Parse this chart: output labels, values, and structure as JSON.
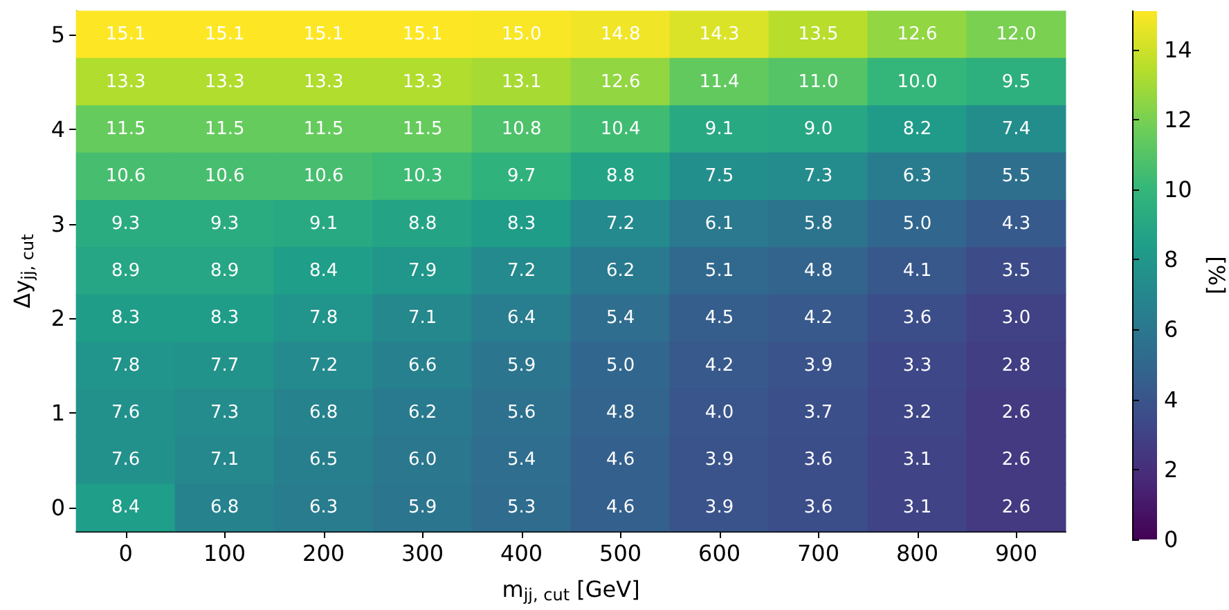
{
  "chart_data": {
    "type": "heatmap",
    "xlabel": "m$_{jj, cut}$ [GeV]",
    "ylabel": "Δy$_{jj, cut}$",
    "clabel": "[%]",
    "categories": [
      "0",
      "100",
      "200",
      "300",
      "400",
      "500",
      "600",
      "700",
      "800",
      "900"
    ],
    "y_categories": [
      "5",
      null,
      "4",
      null,
      "3",
      null,
      "2",
      null,
      "1",
      null,
      "0"
    ],
    "cells": [
      [
        15.1,
        15.1,
        15.1,
        15.1,
        15.0,
        14.8,
        14.3,
        13.5,
        12.6,
        12.0
      ],
      [
        13.3,
        13.3,
        13.3,
        13.3,
        13.1,
        12.6,
        11.4,
        11.0,
        10.0,
        9.5
      ],
      [
        11.5,
        11.5,
        11.5,
        11.5,
        10.8,
        10.4,
        9.1,
        9.0,
        8.2,
        7.4
      ],
      [
        10.6,
        10.6,
        10.6,
        10.3,
        9.7,
        8.8,
        7.5,
        7.3,
        6.3,
        5.5
      ],
      [
        9.3,
        9.3,
        9.1,
        8.8,
        8.3,
        7.2,
        6.1,
        5.8,
        5.0,
        4.3
      ],
      [
        8.9,
        8.9,
        8.4,
        7.9,
        7.2,
        6.2,
        5.1,
        4.8,
        4.1,
        3.5
      ],
      [
        8.3,
        8.3,
        7.8,
        7.1,
        6.4,
        5.4,
        4.5,
        4.2,
        3.6,
        3.0
      ],
      [
        7.8,
        7.7,
        7.2,
        6.6,
        5.9,
        5.0,
        4.2,
        3.9,
        3.3,
        2.8
      ],
      [
        7.6,
        7.3,
        6.8,
        6.2,
        5.6,
        4.8,
        4.0,
        3.7,
        3.2,
        2.6
      ],
      [
        7.6,
        7.1,
        6.5,
        6.0,
        5.4,
        4.6,
        3.9,
        3.6,
        3.1,
        2.6
      ],
      [
        8.4,
        6.8,
        6.3,
        5.9,
        5.3,
        4.6,
        3.9,
        3.6,
        3.1,
        2.6
      ]
    ],
    "cell_labels": [
      [
        "15.1",
        "15.1",
        "15.1",
        "15.1",
        "15.0",
        "14.8",
        "14.3",
        "13.5",
        "12.6",
        "12.0"
      ],
      [
        "13.3",
        "13.3",
        "13.3",
        "13.3",
        "13.1",
        "12.6",
        "11.4",
        "11.0",
        "10.0",
        "9.5"
      ],
      [
        "11.5",
        "11.5",
        "11.5",
        "11.5",
        "10.8",
        "10.4",
        "9.1",
        "9.0",
        "8.2",
        "7.4"
      ],
      [
        "10.6",
        "10.6",
        "10.6",
        "10.3",
        "9.7",
        "8.8",
        "7.5",
        "7.3",
        "6.3",
        "5.5"
      ],
      [
        "9.3",
        "9.3",
        "9.1",
        "8.8",
        "8.3",
        "7.2",
        "6.1",
        "5.8",
        "5.0",
        "4.3"
      ],
      [
        "8.9",
        "8.9",
        "8.4",
        "7.9",
        "7.2",
        "6.2",
        "5.1",
        "4.8",
        "4.1",
        "3.5"
      ],
      [
        "8.3",
        "8.3",
        "7.8",
        "7.1",
        "6.4",
        "5.4",
        "4.5",
        "4.2",
        "3.6",
        "3.0"
      ],
      [
        "7.8",
        "7.7",
        "7.2",
        "6.6",
        "5.9",
        "5.0",
        "4.2",
        "3.9",
        "3.3",
        "2.8"
      ],
      [
        "7.6",
        "7.3",
        "6.8",
        "6.2",
        "5.6",
        "4.8",
        "4.0",
        "3.7",
        "3.2",
        "2.6"
      ],
      [
        "7.6",
        "7.1",
        "6.5",
        "6.0",
        "5.4",
        "4.6",
        "3.9",
        "3.6",
        "3.1",
        "2.6"
      ],
      [
        "8.4",
        "6.8",
        "6.3",
        "5.9",
        "5.3",
        "4.6",
        "3.9",
        "3.6",
        "3.1",
        "2.6"
      ]
    ],
    "clim": [
      0,
      15.1
    ],
    "cticks": [
      0,
      2,
      4,
      6,
      8,
      10,
      12,
      14
    ],
    "data_labels": true
  }
}
